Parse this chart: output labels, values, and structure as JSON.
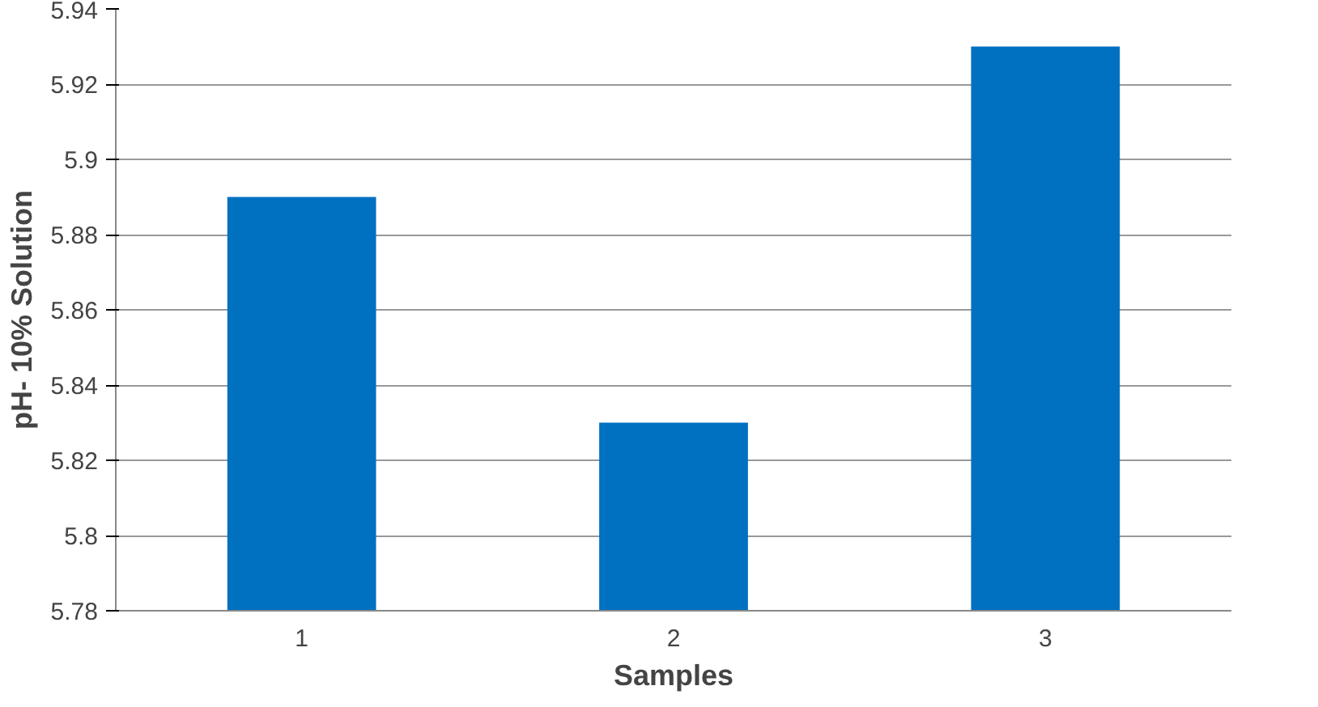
{
  "chart_data": {
    "type": "bar",
    "xlabel": "Samples",
    "ylabel": "pH- 10% Solution",
    "categories": [
      "1",
      "2",
      "3"
    ],
    "values": [
      5.89,
      5.83,
      5.93
    ],
    "color": "#0070c0",
    "ylim": [
      5.78,
      5.94
    ],
    "yticks": [
      5.78,
      5.8,
      5.82,
      5.84,
      5.86,
      5.88,
      5.9,
      5.92,
      5.94
    ],
    "grid": "y"
  }
}
